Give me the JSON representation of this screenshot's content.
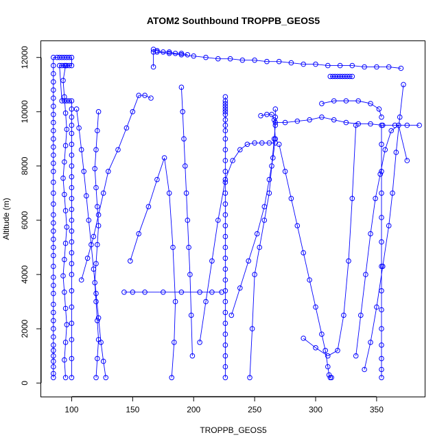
{
  "chart_data": {
    "type": "line",
    "title": "ATOM2 Southbound TROPPB_GEOS5",
    "xlabel": "TROPPB_GEOS5",
    "ylabel": "Altitude (m)",
    "xlim": [
      75,
      390
    ],
    "ylim": [
      -500,
      12600
    ],
    "xticks": [
      100,
      150,
      200,
      250,
      300,
      350
    ],
    "yticks": [
      0,
      2000,
      4000,
      6000,
      8000,
      10000,
      12000
    ],
    "grid": false,
    "legend": "none",
    "marker": "open-circle",
    "color": "#0000ff",
    "series": [
      {
        "x": [
          85,
          85,
          85,
          85,
          85,
          85,
          85,
          85,
          85,
          85,
          85,
          85,
          85,
          85,
          85,
          85,
          85,
          85,
          85,
          85,
          85,
          85,
          85,
          85,
          85,
          85,
          85,
          85,
          85,
          85,
          85,
          85,
          85,
          85,
          85,
          85,
          85,
          85,
          85,
          85,
          88,
          90,
          92,
          94,
          96,
          98,
          100,
          100,
          98,
          96,
          94,
          92,
          90,
          92,
          94,
          96,
          98,
          100,
          100,
          100,
          100,
          100,
          100,
          100,
          100,
          100,
          100,
          100,
          100,
          100,
          100,
          100,
          100,
          100,
          100,
          100,
          100,
          100,
          100,
          100,
          100
        ],
        "y": [
          200,
          350,
          600,
          800,
          1000,
          1200,
          1400,
          1700,
          2000,
          2300,
          2600,
          2900,
          3300,
          3600,
          3900,
          4300,
          4700,
          5000,
          5300,
          5600,
          5900,
          6200,
          6600,
          7000,
          7400,
          7800,
          8100,
          8400,
          8700,
          9000,
          9300,
          9600,
          9900,
          10200,
          10500,
          10800,
          11100,
          11400,
          11700,
          12000,
          12000,
          12000,
          12000,
          12000,
          12000,
          12000,
          12000,
          11700,
          11700,
          11700,
          11700,
          11700,
          11700,
          10400,
          10400,
          10400,
          10400,
          10400,
          10100,
          9800,
          9500,
          9200,
          8800,
          8400,
          8000,
          7600,
          7200,
          6800,
          6400,
          6000,
          5600,
          5200,
          4800,
          4400,
          4000,
          3400,
          2800,
          2200,
          1600,
          900,
          200
        ]
      },
      {
        "x": [
          95,
          94,
          95,
          96,
          95,
          94,
          93,
          94,
          95,
          96,
          95,
          94,
          93,
          94,
          95,
          96,
          95,
          94,
          93,
          95
        ],
        "y": [
          200,
          850,
          1500,
          2150,
          2750,
          3350,
          3950,
          4550,
          5150,
          5750,
          6350,
          6950,
          7550,
          8150,
          8750,
          9350,
          9950,
          10550,
          11150,
          11700
        ]
      },
      {
        "x": [
          104,
          106,
          108,
          110,
          112,
          114,
          116,
          118,
          120,
          122,
          124,
          126,
          128
        ],
        "y": [
          10100,
          9400,
          8600,
          7800,
          6900,
          6000,
          5100,
          4200,
          3300,
          2400,
          1500,
          800,
          200
        ]
      },
      {
        "x": [
          108,
          113,
          118,
          122,
          126,
          130,
          138,
          145,
          150,
          155,
          160,
          165
        ],
        "y": [
          3800,
          4600,
          5400,
          6200,
          7000,
          7800,
          8600,
          9400,
          10000,
          10600,
          10600,
          10500
        ]
      },
      {
        "x": [
          120,
          121,
          122,
          121,
          120,
          119,
          120,
          121,
          122,
          121,
          120,
          119,
          120,
          121,
          122
        ],
        "y": [
          200,
          900,
          1600,
          2300,
          3000,
          3700,
          4400,
          5100,
          5800,
          6500,
          7200,
          7900,
          8600,
          9300,
          10000
        ]
      },
      {
        "x": [
          143,
          150,
          160,
          175,
          190,
          205,
          215,
          223
        ],
        "y": [
          3350,
          3350,
          3350,
          3350,
          3350,
          3350,
          3350,
          3350
        ]
      },
      {
        "x": [
          148,
          155,
          163,
          170,
          176,
          180,
          183,
          185,
          184,
          182
        ],
        "y": [
          4500,
          5500,
          6500,
          7500,
          8300,
          7000,
          5000,
          3000,
          1500,
          200
        ]
      },
      {
        "x": [
          167,
          167,
          167,
          170,
          175,
          180,
          185,
          190,
          195
        ],
        "y": [
          11650,
          12200,
          12300,
          12250,
          12200,
          12200,
          12150,
          12150,
          12100
        ]
      },
      {
        "x": [
          190,
          191,
          192,
          193,
          194,
          195,
          196,
          197,
          198,
          199
        ],
        "y": [
          10900,
          10000,
          9000,
          8000,
          7000,
          6000,
          5000,
          4000,
          2500,
          1000
        ]
      },
      {
        "x": [
          226,
          226,
          226,
          226,
          226,
          226,
          226,
          226,
          226,
          226,
          226,
          226,
          226,
          226,
          226,
          226,
          226,
          226,
          226,
          226,
          226,
          226,
          226,
          226,
          226,
          226,
          226,
          226,
          226,
          226,
          226,
          226,
          226
        ],
        "y": [
          200,
          600,
          1000,
          1400,
          1800,
          2200,
          2600,
          3000,
          3400,
          3800,
          4200,
          4600,
          5000,
          5400,
          5800,
          6200,
          6600,
          7000,
          7400,
          7800,
          8200,
          8600,
          9000,
          9300,
          9500,
          9700,
          9900,
          10000,
          10100,
          10200,
          10300,
          10400,
          10550
        ]
      },
      {
        "x": [
          205,
          210,
          215,
          220,
          226,
          232,
          238,
          244,
          250,
          256,
          262,
          267
        ],
        "y": [
          1500,
          3000,
          4500,
          6000,
          7500,
          8200,
          8600,
          8800,
          8850,
          8850,
          8850,
          8850
        ]
      },
      {
        "x": [
          231,
          238,
          245,
          252,
          258,
          262,
          265,
          267,
          266,
          264,
          260,
          255
        ],
        "y": [
          2500,
          3500,
          4500,
          5500,
          6500,
          7500,
          8300,
          9000,
          9700,
          9900,
          9900,
          9850
        ]
      },
      {
        "x": [
          267,
          267,
          267,
          266,
          264,
          262,
          258,
          254,
          250,
          248,
          246
        ],
        "y": [
          10100,
          9800,
          9500,
          9000,
          8000,
          7000,
          6000,
          5000,
          4000,
          2000,
          200
        ]
      },
      {
        "x": [
          170,
          180,
          190,
          200,
          210,
          220,
          230,
          240,
          250,
          260,
          270,
          280,
          290,
          300,
          310,
          320,
          330,
          340,
          350,
          360,
          370
        ],
        "y": [
          12200,
          12150,
          12100,
          12050,
          12000,
          11950,
          11950,
          11900,
          11900,
          11850,
          11850,
          11800,
          11750,
          11750,
          11700,
          11700,
          11700,
          11650,
          11650,
          11650,
          11600
        ]
      },
      {
        "x": [
          267,
          275,
          285,
          295,
          305,
          315,
          325,
          335,
          345,
          355,
          365,
          375,
          385
        ],
        "y": [
          9600,
          9600,
          9650,
          9700,
          9800,
          9700,
          9600,
          9550,
          9550,
          9500,
          9500,
          9500,
          9500
        ]
      },
      {
        "x": [
          270,
          275,
          280,
          285,
          290,
          295,
          300,
          305,
          308,
          310,
          311,
          312,
          313
        ],
        "y": [
          8800,
          7800,
          6800,
          5800,
          4800,
          3800,
          2800,
          1800,
          1200,
          600,
          300,
          200,
          200
        ]
      },
      {
        "x": [
          305,
          315,
          325,
          335,
          345,
          352,
          354
        ],
        "y": [
          10300,
          10400,
          10400,
          10400,
          10300,
          10100,
          9800
        ]
      },
      {
        "x": [
          290,
          300,
          310,
          318,
          323,
          327,
          330,
          333
        ],
        "y": [
          1650,
          1300,
          1000,
          1200,
          2500,
          4500,
          6800,
          9500
        ]
      },
      {
        "x": [
          312,
          314,
          316,
          318,
          320,
          322,
          324,
          326,
          328,
          330
        ],
        "y": [
          11300,
          11300,
          11300,
          11300,
          11300,
          11300,
          11300,
          11300,
          11300,
          11300
        ]
      },
      {
        "x": [
          354,
          354,
          354,
          354,
          354,
          354,
          354,
          354,
          354,
          354,
          354,
          354,
          354,
          354
        ],
        "y": [
          200,
          500,
          900,
          1400,
          2000,
          2700,
          3400,
          4300,
          5200,
          6100,
          7000,
          7800,
          8800,
          9500
        ]
      },
      {
        "x": [
          340,
          345,
          350,
          355,
          360,
          363,
          366,
          369,
          372
        ],
        "y": [
          500,
          1500,
          2800,
          4300,
          5800,
          7000,
          8500,
          9800,
          11000
        ]
      },
      {
        "x": [
          333,
          337,
          341,
          345,
          349,
          353,
          357,
          362,
          368,
          375
        ],
        "y": [
          1000,
          2500,
          4000,
          5500,
          6800,
          7700,
          8600,
          9300,
          9500,
          8200
        ]
      }
    ]
  }
}
